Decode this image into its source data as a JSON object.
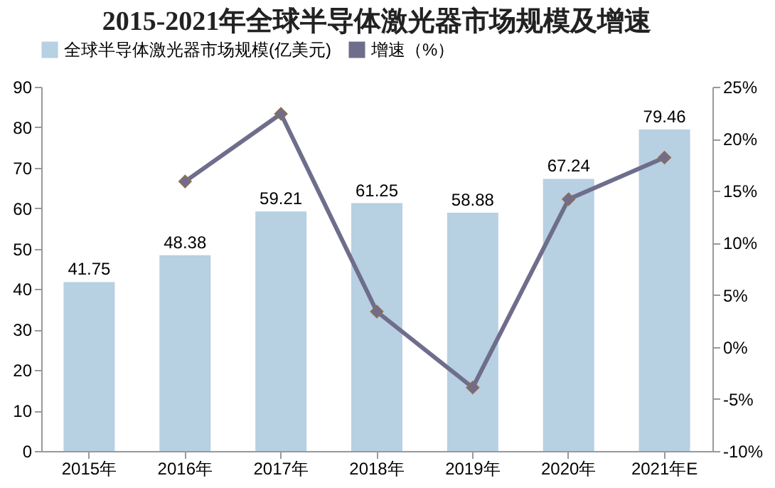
{
  "chart_data": {
    "type": "bar",
    "title": "2015-2021年全球半导体激光器市场规模及增速",
    "categories": [
      "2015年",
      "2016年",
      "2017年",
      "2018年",
      "2019年",
      "2020年",
      "2021年E"
    ],
    "series": [
      {
        "name": "全球半导体激光器市场规模(亿美元)",
        "color": "#b7d0e2",
        "values": [
          41.75,
          48.38,
          59.21,
          61.25,
          58.88,
          67.24,
          79.46
        ],
        "value_labels": [
          "41.75",
          "48.38",
          "59.21",
          "61.25",
          "58.88",
          "67.24",
          "79.46"
        ]
      },
      {
        "name": "增速（%）",
        "type": "line",
        "axis": "y2",
        "color": "#6e6e8c",
        "marker": "diamond",
        "values": [
          null,
          15.9,
          22.4,
          3.4,
          -3.9,
          14.2,
          18.2
        ]
      }
    ],
    "ylim": [
      0,
      90
    ],
    "yticks": [
      0,
      10,
      20,
      30,
      40,
      50,
      60,
      70,
      80,
      90
    ],
    "y2lim": [
      -10,
      25
    ],
    "y2ticks": [
      {
        "value": -10,
        "label": "-10%"
      },
      {
        "value": -5,
        "label": "-5%"
      },
      {
        "value": 0,
        "label": "0%"
      },
      {
        "value": 5,
        "label": "5%"
      },
      {
        "value": 10,
        "label": "10%"
      },
      {
        "value": 15,
        "label": "15%"
      },
      {
        "value": 20,
        "label": "20%"
      },
      {
        "value": 25,
        "label": "25%"
      }
    ],
    "legend": "top",
    "grid": false
  }
}
